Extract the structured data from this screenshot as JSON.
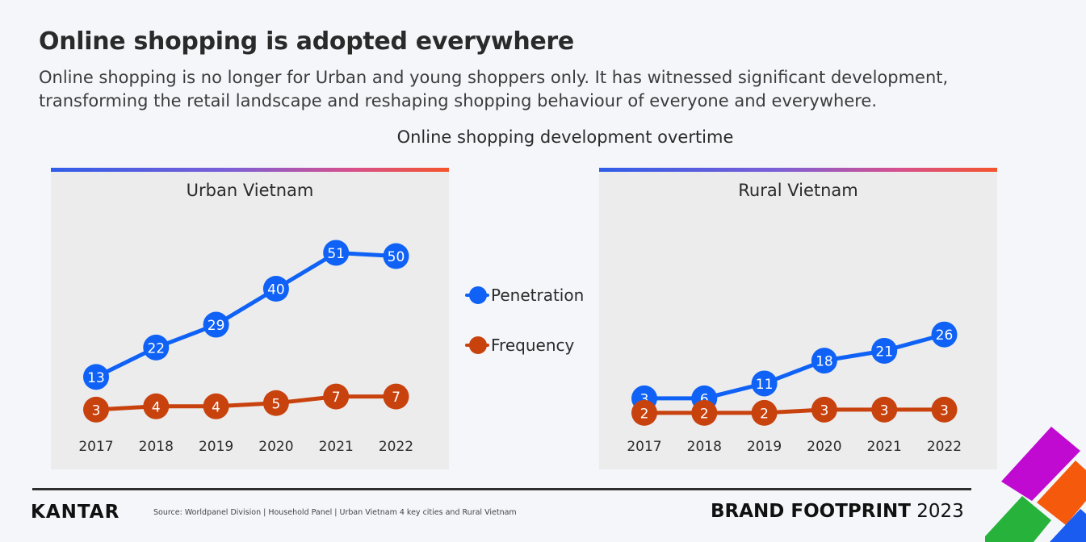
{
  "slide": {
    "title": "Online shopping is adopted everywhere",
    "subtitle": "Online shopping is no longer for Urban and young shoppers only. It has witnessed significant development, transforming the retail landscape and reshaping shopping behaviour of everyone and everywhere.",
    "chart_heading": "Online shopping development overtime"
  },
  "colors": {
    "penetration": "#0f62f5",
    "frequency": "#c8420e",
    "panel_bg": "#ececec"
  },
  "legend": {
    "penetration": "Penetration",
    "frequency": "Frequency"
  },
  "footer": {
    "logo": "KANTAR",
    "source": "Source: Worldpanel Division | Household Panel | Urban Vietnam 4 key cities and Rural Vietnam",
    "brand_bold": "BRAND FOOTPRINT",
    "brand_year": "2023"
  },
  "chart_data": [
    {
      "type": "line",
      "title": "Urban Vietnam",
      "x": [
        "2017",
        "2018",
        "2019",
        "2020",
        "2021",
        "2022"
      ],
      "series": [
        {
          "name": "Penetration",
          "values": [
            13,
            22,
            29,
            40,
            51,
            50
          ]
        },
        {
          "name": "Frequency",
          "values": [
            3,
            4,
            4,
            5,
            7,
            7
          ]
        }
      ]
    },
    {
      "type": "line",
      "title": "Rural Vietnam",
      "x": [
        "2017",
        "2018",
        "2019",
        "2020",
        "2021",
        "2022"
      ],
      "series": [
        {
          "name": "Penetration",
          "values": [
            3,
            6,
            11,
            18,
            21,
            26
          ]
        },
        {
          "name": "Frequency",
          "values": [
            2,
            2,
            2,
            3,
            3,
            3
          ]
        }
      ]
    }
  ]
}
